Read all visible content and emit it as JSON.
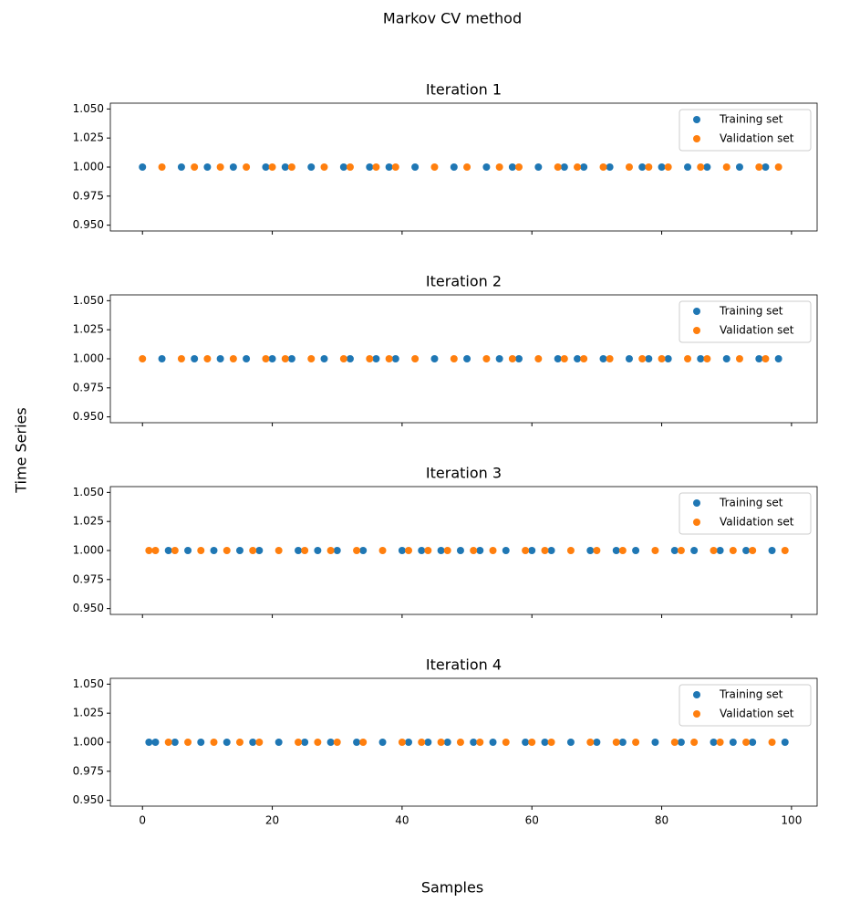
{
  "figure": {
    "title": "Markov CV method",
    "xlabel": "Samples",
    "ylabel": "Time Series"
  },
  "chart_data": [
    {
      "type": "scatter",
      "title": "Iteration 1",
      "xlim": [
        -4.95,
        103.95
      ],
      "ylim": [
        0.945,
        1.055
      ],
      "xticks": [
        0,
        20,
        40,
        60,
        80,
        100
      ],
      "show_xticklabels": false,
      "yticks": [
        {
          "value": 0.95,
          "label": "0.950"
        },
        {
          "value": 0.975,
          "label": "0.975"
        },
        {
          "value": 1.0,
          "label": "1.000"
        },
        {
          "value": 1.025,
          "label": "1.025"
        },
        {
          "value": 1.05,
          "label": "1.050"
        }
      ],
      "legend": "upper right",
      "series": [
        {
          "name": "Training set",
          "color": "#1f77b4",
          "x": [
            0,
            6,
            10,
            14,
            19,
            22,
            26,
            31,
            35,
            38,
            42,
            48,
            53,
            57,
            61,
            65,
            68,
            72,
            77,
            80,
            84,
            87,
            92,
            96
          ],
          "values": [
            1,
            1,
            1,
            1,
            1,
            1,
            1,
            1,
            1,
            1,
            1,
            1,
            1,
            1,
            1,
            1,
            1,
            1,
            1,
            1,
            1,
            1,
            1,
            1
          ]
        },
        {
          "name": "Validation set",
          "color": "#ff7f0e",
          "x": [
            3,
            8,
            12,
            16,
            20,
            23,
            28,
            32,
            36,
            39,
            45,
            50,
            55,
            58,
            64,
            67,
            71,
            75,
            78,
            81,
            86,
            90,
            95,
            98
          ],
          "values": [
            1,
            1,
            1,
            1,
            1,
            1,
            1,
            1,
            1,
            1,
            1,
            1,
            1,
            1,
            1,
            1,
            1,
            1,
            1,
            1,
            1,
            1,
            1,
            1
          ]
        }
      ]
    },
    {
      "type": "scatter",
      "title": "Iteration 2",
      "xlim": [
        -4.95,
        103.95
      ],
      "ylim": [
        0.945,
        1.055
      ],
      "xticks": [
        0,
        20,
        40,
        60,
        80,
        100
      ],
      "show_xticklabels": false,
      "yticks": [
        {
          "value": 0.95,
          "label": "0.950"
        },
        {
          "value": 0.975,
          "label": "0.975"
        },
        {
          "value": 1.0,
          "label": "1.000"
        },
        {
          "value": 1.025,
          "label": "1.025"
        },
        {
          "value": 1.05,
          "label": "1.050"
        }
      ],
      "legend": "upper right",
      "series": [
        {
          "name": "Training set",
          "color": "#1f77b4",
          "x": [
            3,
            8,
            12,
            16,
            20,
            23,
            28,
            32,
            36,
            39,
            45,
            50,
            55,
            58,
            64,
            67,
            71,
            75,
            78,
            81,
            86,
            90,
            95,
            98
          ],
          "values": [
            1,
            1,
            1,
            1,
            1,
            1,
            1,
            1,
            1,
            1,
            1,
            1,
            1,
            1,
            1,
            1,
            1,
            1,
            1,
            1,
            1,
            1,
            1,
            1
          ]
        },
        {
          "name": "Validation set",
          "color": "#ff7f0e",
          "x": [
            0,
            6,
            10,
            14,
            19,
            22,
            26,
            31,
            35,
            38,
            42,
            48,
            53,
            57,
            61,
            65,
            68,
            72,
            77,
            80,
            84,
            87,
            92,
            96
          ],
          "values": [
            1,
            1,
            1,
            1,
            1,
            1,
            1,
            1,
            1,
            1,
            1,
            1,
            1,
            1,
            1,
            1,
            1,
            1,
            1,
            1,
            1,
            1,
            1,
            1
          ]
        }
      ]
    },
    {
      "type": "scatter",
      "title": "Iteration 3",
      "xlim": [
        -4.95,
        103.95
      ],
      "ylim": [
        0.945,
        1.055
      ],
      "xticks": [
        0,
        20,
        40,
        60,
        80,
        100
      ],
      "show_xticklabels": false,
      "yticks": [
        {
          "value": 0.95,
          "label": "0.950"
        },
        {
          "value": 0.975,
          "label": "0.975"
        },
        {
          "value": 1.0,
          "label": "1.000"
        },
        {
          "value": 1.025,
          "label": "1.025"
        },
        {
          "value": 1.05,
          "label": "1.050"
        }
      ],
      "legend": "upper right",
      "series": [
        {
          "name": "Training set",
          "color": "#1f77b4",
          "x": [
            4,
            7,
            11,
            15,
            18,
            24,
            27,
            30,
            34,
            40,
            43,
            46,
            49,
            52,
            56,
            60,
            63,
            69,
            73,
            76,
            82,
            85,
            89,
            93,
            97
          ],
          "values": [
            1,
            1,
            1,
            1,
            1,
            1,
            1,
            1,
            1,
            1,
            1,
            1,
            1,
            1,
            1,
            1,
            1,
            1,
            1,
            1,
            1,
            1,
            1,
            1,
            1
          ]
        },
        {
          "name": "Validation set",
          "color": "#ff7f0e",
          "x": [
            1,
            2,
            5,
            9,
            13,
            17,
            21,
            25,
            29,
            33,
            37,
            41,
            44,
            47,
            51,
            54,
            59,
            62,
            66,
            70,
            74,
            79,
            83,
            88,
            91,
            94,
            99
          ],
          "values": [
            1,
            1,
            1,
            1,
            1,
            1,
            1,
            1,
            1,
            1,
            1,
            1,
            1,
            1,
            1,
            1,
            1,
            1,
            1,
            1,
            1,
            1,
            1,
            1,
            1,
            1,
            1
          ]
        }
      ]
    },
    {
      "type": "scatter",
      "title": "Iteration 4",
      "xlim": [
        -4.95,
        103.95
      ],
      "ylim": [
        0.945,
        1.055
      ],
      "xticks": [
        0,
        20,
        40,
        60,
        80,
        100
      ],
      "show_xticklabels": true,
      "yticks": [
        {
          "value": 0.95,
          "label": "0.950"
        },
        {
          "value": 0.975,
          "label": "0.975"
        },
        {
          "value": 1.0,
          "label": "1.000"
        },
        {
          "value": 1.025,
          "label": "1.025"
        },
        {
          "value": 1.05,
          "label": "1.050"
        }
      ],
      "legend": "upper right",
      "series": [
        {
          "name": "Training set",
          "color": "#1f77b4",
          "x": [
            1,
            2,
            5,
            9,
            13,
            17,
            21,
            25,
            29,
            33,
            37,
            41,
            44,
            47,
            51,
            54,
            59,
            62,
            66,
            70,
            74,
            79,
            83,
            88,
            91,
            94,
            99
          ],
          "values": [
            1,
            1,
            1,
            1,
            1,
            1,
            1,
            1,
            1,
            1,
            1,
            1,
            1,
            1,
            1,
            1,
            1,
            1,
            1,
            1,
            1,
            1,
            1,
            1,
            1,
            1,
            1
          ]
        },
        {
          "name": "Validation set",
          "color": "#ff7f0e",
          "x": [
            4,
            7,
            11,
            15,
            18,
            24,
            27,
            30,
            34,
            40,
            43,
            46,
            49,
            52,
            56,
            60,
            63,
            69,
            73,
            76,
            82,
            85,
            89,
            93,
            97
          ],
          "values": [
            1,
            1,
            1,
            1,
            1,
            1,
            1,
            1,
            1,
            1,
            1,
            1,
            1,
            1,
            1,
            1,
            1,
            1,
            1,
            1,
            1,
            1,
            1,
            1,
            1
          ]
        }
      ]
    }
  ]
}
